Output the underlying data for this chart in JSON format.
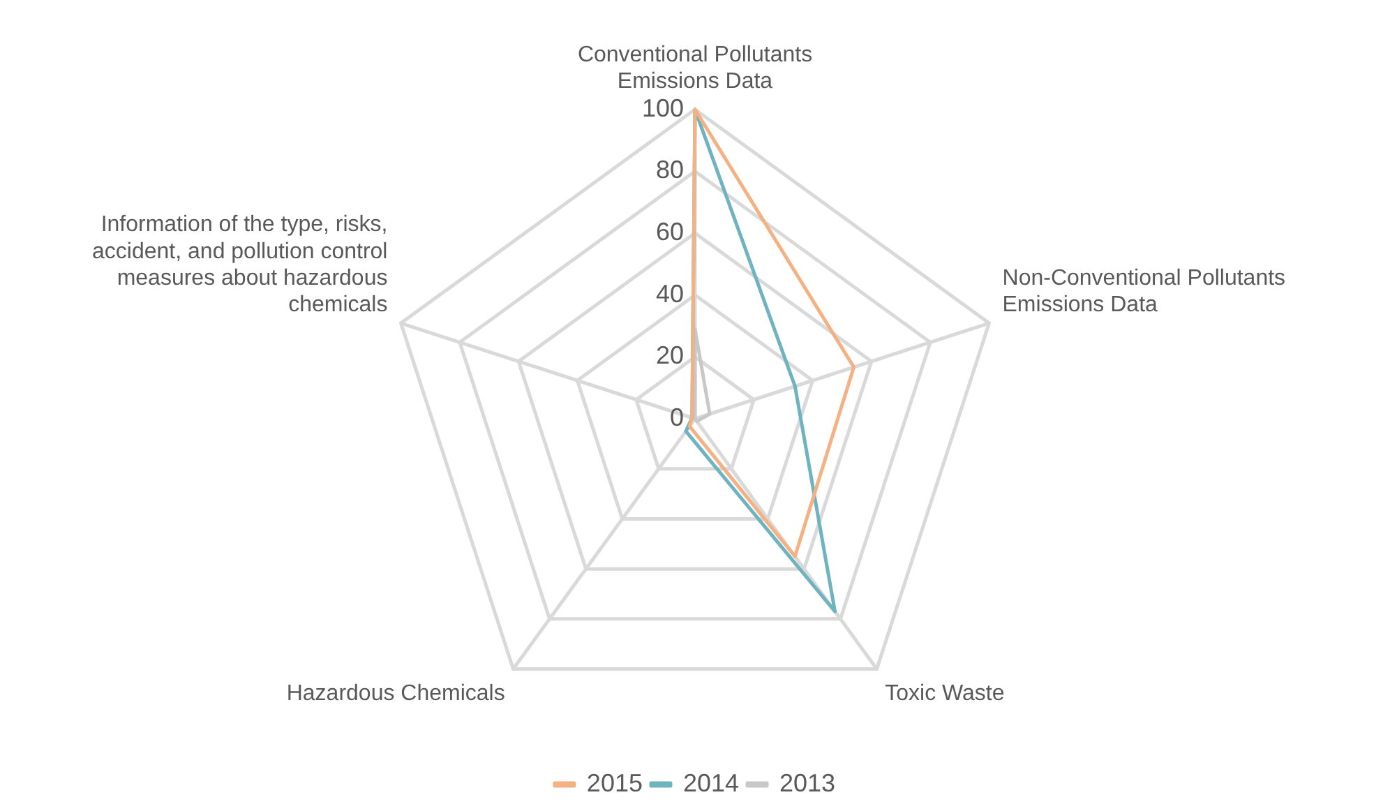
{
  "chart_data": {
    "type": "radar",
    "categories": [
      "Conventional Pollutants Emissions Data",
      "Non-Conventional Pollutants Emissions Data",
      "Toxic Waste",
      "Hazardous Chemicals",
      "Information of the type, risks, accident, and pollution control measures about hazardous chemicals"
    ],
    "series": [
      {
        "name": "2015",
        "color": "#f4b183",
        "values": [
          100,
          54,
          55,
          3,
          1
        ]
      },
      {
        "name": "2014",
        "color": "#6fb3c0",
        "values": [
          100,
          34,
          77,
          5,
          1
        ]
      },
      {
        "name": "2013",
        "color": "#c8c8c8",
        "values": [
          29,
          5,
          1,
          0,
          0
        ]
      }
    ],
    "ylim": [
      0,
      100
    ],
    "yticks": [
      0,
      20,
      40,
      60,
      80,
      100
    ],
    "grid": true,
    "legend": "bottom",
    "marker": "none",
    "line_style": "solid"
  }
}
